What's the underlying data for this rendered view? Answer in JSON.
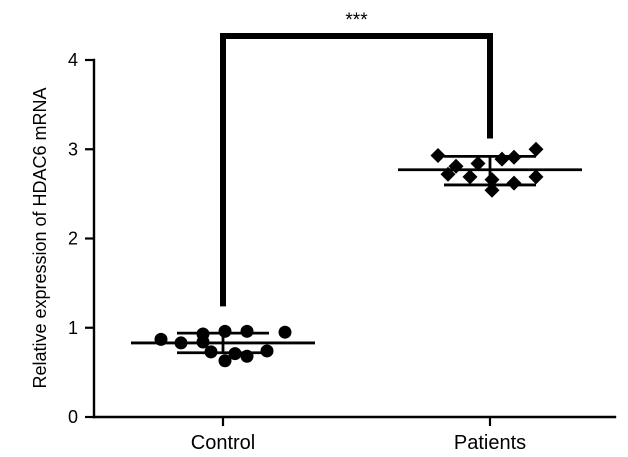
{
  "chart_data": {
    "type": "scatter",
    "ylabel": "Relative expression of HDAC6 mRNA",
    "xlabel": "",
    "categories": [
      "Control",
      "Patients"
    ],
    "ylim": [
      0,
      4
    ],
    "yticks": [
      "0",
      "1",
      "2",
      "3",
      "4"
    ],
    "grid": false,
    "groups": [
      {
        "name": "Control",
        "marker": "circle",
        "mean": 0.83,
        "sd_low": 0.72,
        "sd_high": 0.94,
        "values": [
          0.87,
          0.83,
          0.84,
          0.93,
          0.96,
          0.96,
          0.95,
          0.73,
          0.71,
          0.63,
          0.68,
          0.74
        ]
      },
      {
        "name": "Patients",
        "marker": "diamond",
        "mean": 2.77,
        "sd_low": 2.6,
        "sd_high": 2.92,
        "values": [
          2.93,
          2.81,
          2.84,
          2.89,
          2.91,
          3.0,
          2.72,
          2.69,
          2.66,
          2.54,
          2.62,
          2.69
        ]
      }
    ],
    "significance": {
      "label": "***",
      "between": [
        "Control",
        "Patients"
      ],
      "y": 4.3
    }
  }
}
